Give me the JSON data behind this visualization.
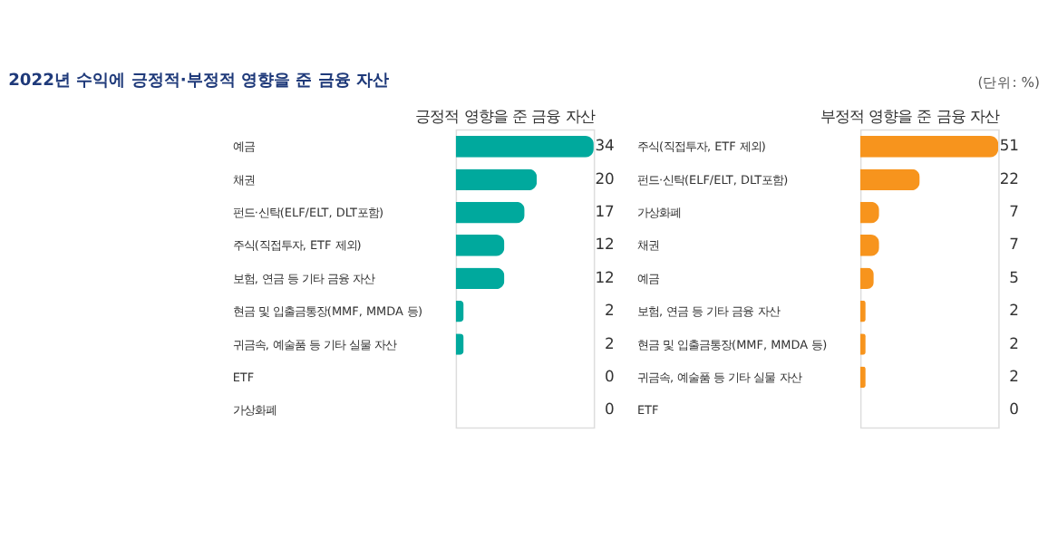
{
  "chart_data": [
    {
      "type": "bar",
      "orientation": "horizontal",
      "title": "2022년 수익에 긍정적·부정적 영향을 준 금융 자산",
      "xlabel": "긍정적 영향을 준 금융 자산",
      "tick_labels": "y",
      "data_labels": true,
      "categories": [
        "예금",
        "채권",
        "펀드·신탁(ELF/ELT, DLT포함)",
        "주식(직접투자, ETF 제외)",
        "보험, 연금 등 기타 금융 자산",
        "현금 및 입출금통장(MMF, MMDA 등)",
        "귀금속, 예술품 등 기타 실물 자산",
        "ETF",
        "가상화폐"
      ],
      "series": [
        {
          "color": "#00a99d",
          "values": [
            34,
            20,
            17,
            12,
            12,
            2,
            2,
            0,
            0
          ]
        }
      ]
    },
    {
      "type": "bar",
      "orientation": "horizontal",
      "xlabel": "부정적 영향을 준 금융 자산",
      "tick_labels": "y",
      "data_labels": true,
      "annotations": [
        "(단위: %)"
      ],
      "categories": [
        "주식(직접투자, ETF 제외)",
        "펀드·신탁(ELF/ELT, DLT포함)",
        "가상화폐",
        "채권",
        "예금",
        "보험, 연금 등 기타 금융 자산",
        "현금 및 입출금통장(MMF, MMDA 등)",
        "귀금속, 예술품 등 기타 실물 자산",
        "ETF"
      ],
      "series": [
        {
          "color": "#f7941d",
          "values": [
            51,
            22,
            7,
            7,
            5,
            2,
            2,
            2,
            0
          ]
        }
      ]
    }
  ]
}
